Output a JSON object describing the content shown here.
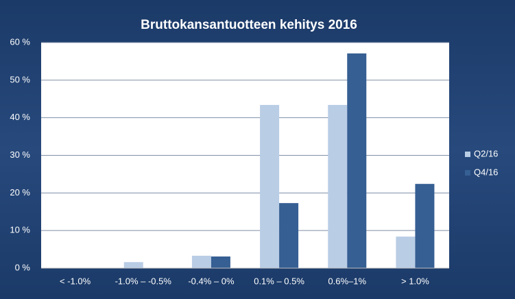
{
  "chart_data": {
    "type": "bar",
    "title": "Bruttokansantuotteen kehitys 2016",
    "categories": [
      "< -1.0%",
      "-1.0% – -0.5%",
      "-0.4% – 0%",
      "0.1% – 0.5%",
      "0.6%–1%",
      "> 1.0%"
    ],
    "series": [
      {
        "name": "Q2/16",
        "color": "#b9cde5",
        "values": [
          0,
          1.6,
          3.3,
          43.4,
          43.4,
          8.4
        ]
      },
      {
        "name": "Q4/16",
        "color": "#365f93",
        "values": [
          0,
          0,
          3.1,
          17.3,
          57.1,
          22.4
        ]
      }
    ],
    "ylim": [
      0,
      60
    ],
    "yticks": [
      {
        "value": 0,
        "label": "0 %"
      },
      {
        "value": 10,
        "label": "10 %"
      },
      {
        "value": 20,
        "label": "20 %"
      },
      {
        "value": 30,
        "label": "30 %"
      },
      {
        "value": 40,
        "label": "40 %"
      },
      {
        "value": 50,
        "label": "50 %"
      },
      {
        "value": 60,
        "label": "60 %"
      }
    ],
    "grid": true,
    "legend": "right"
  }
}
